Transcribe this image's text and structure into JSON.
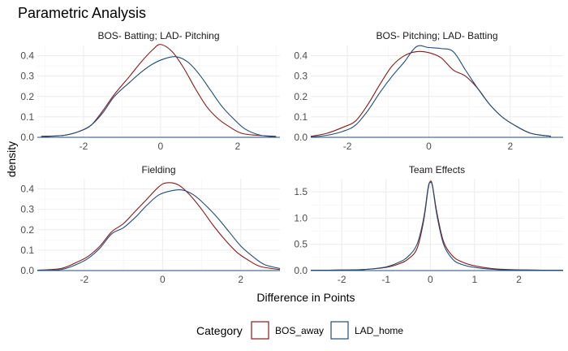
{
  "chart_data": {
    "type": "line",
    "title": "Parametric Analysis",
    "xlabel": "Difference in Points",
    "ylabel": "density",
    "legend": {
      "title": "Category",
      "position": "bottom",
      "entries": [
        {
          "name": "BOS_away",
          "color": "#8b1a1a"
        },
        {
          "name": "LAD_home",
          "color": "#1f4e79"
        }
      ]
    },
    "grid": true,
    "panels": [
      {
        "name": "BOS- Batting; LAD- Pitching",
        "xlim": [
          -3.2,
          3.1
        ],
        "ylim": [
          0,
          0.45
        ],
        "xticks": [
          -2,
          0,
          2
        ],
        "yticks": [
          0.0,
          0.1,
          0.2,
          0.3,
          0.4
        ],
        "series": [
          {
            "name": "BOS_away",
            "color": "#8b1a1a",
            "points": [
              [
                -3.1,
                0.005
              ],
              [
                -2.5,
                0.01
              ],
              [
                -2.1,
                0.03
              ],
              [
                -1.8,
                0.06
              ],
              [
                -1.5,
                0.13
              ],
              [
                -1.2,
                0.21
              ],
              [
                -0.8,
                0.3
              ],
              [
                -0.5,
                0.37
              ],
              [
                -0.2,
                0.43
              ],
              [
                0.0,
                0.455
              ],
              [
                0.3,
                0.42
              ],
              [
                0.6,
                0.34
              ],
              [
                0.9,
                0.24
              ],
              [
                1.2,
                0.15
              ],
              [
                1.5,
                0.09
              ],
              [
                1.8,
                0.05
              ],
              [
                2.1,
                0.02
              ],
              [
                2.5,
                0.01
              ],
              [
                3.0,
                0.005
              ]
            ]
          },
          {
            "name": "LAD_home",
            "color": "#1f4e79",
            "points": [
              [
                -3.1,
                0.003
              ],
              [
                -2.5,
                0.01
              ],
              [
                -2.1,
                0.03
              ],
              [
                -1.8,
                0.06
              ],
              [
                -1.5,
                0.12
              ],
              [
                -1.2,
                0.2
              ],
              [
                -0.8,
                0.27
              ],
              [
                -0.5,
                0.32
              ],
              [
                -0.2,
                0.36
              ],
              [
                0.1,
                0.385
              ],
              [
                0.4,
                0.395
              ],
              [
                0.7,
                0.37
              ],
              [
                1.0,
                0.31
              ],
              [
                1.3,
                0.23
              ],
              [
                1.6,
                0.15
              ],
              [
                1.9,
                0.09
              ],
              [
                2.2,
                0.04
              ],
              [
                2.6,
                0.01
              ],
              [
                3.0,
                0.003
              ]
            ]
          }
        ]
      },
      {
        "name": "BOS- Pitching; LAD- Batting",
        "xlim": [
          -2.9,
          3.3
        ],
        "ylim": [
          0,
          0.45
        ],
        "xticks": [
          -2,
          0,
          2
        ],
        "yticks": [
          0.0,
          0.1,
          0.2,
          0.3,
          0.4
        ],
        "series": [
          {
            "name": "BOS_away",
            "color": "#8b1a1a",
            "points": [
              [
                -2.9,
                0.005
              ],
              [
                -2.5,
                0.02
              ],
              [
                -2.1,
                0.05
              ],
              [
                -1.8,
                0.08
              ],
              [
                -1.5,
                0.16
              ],
              [
                -1.2,
                0.26
              ],
              [
                -0.9,
                0.35
              ],
              [
                -0.6,
                0.4
              ],
              [
                -0.3,
                0.42
              ],
              [
                0.0,
                0.415
              ],
              [
                0.3,
                0.39
              ],
              [
                0.6,
                0.33
              ],
              [
                0.9,
                0.3
              ],
              [
                1.2,
                0.24
              ],
              [
                1.5,
                0.16
              ],
              [
                1.8,
                0.1
              ],
              [
                2.1,
                0.06
              ],
              [
                2.5,
                0.02
              ],
              [
                3.0,
                0.005
              ]
            ]
          },
          {
            "name": "LAD_home",
            "color": "#1f4e79",
            "points": [
              [
                -2.9,
                0.002
              ],
              [
                -2.5,
                0.01
              ],
              [
                -2.1,
                0.03
              ],
              [
                -1.8,
                0.06
              ],
              [
                -1.5,
                0.13
              ],
              [
                -1.2,
                0.22
              ],
              [
                -0.9,
                0.3
              ],
              [
                -0.6,
                0.37
              ],
              [
                -0.3,
                0.445
              ],
              [
                0.0,
                0.44
              ],
              [
                0.3,
                0.435
              ],
              [
                0.6,
                0.42
              ],
              [
                0.9,
                0.33
              ],
              [
                1.2,
                0.24
              ],
              [
                1.5,
                0.16
              ],
              [
                1.8,
                0.1
              ],
              [
                2.1,
                0.06
              ],
              [
                2.5,
                0.02
              ],
              [
                3.0,
                0.005
              ]
            ]
          }
        ]
      },
      {
        "name": "Fielding",
        "xlim": [
          -3.2,
          3.0
        ],
        "ylim": [
          0,
          0.45
        ],
        "xticks": [
          -2,
          0,
          2
        ],
        "yticks": [
          0.0,
          0.1,
          0.2,
          0.3,
          0.4
        ],
        "series": [
          {
            "name": "BOS_away",
            "color": "#8b1a1a",
            "points": [
              [
                -3.2,
                0.002
              ],
              [
                -2.6,
                0.01
              ],
              [
                -2.2,
                0.04
              ],
              [
                -1.9,
                0.07
              ],
              [
                -1.6,
                0.12
              ],
              [
                -1.3,
                0.19
              ],
              [
                -1.0,
                0.23
              ],
              [
                -0.7,
                0.29
              ],
              [
                -0.4,
                0.35
              ],
              [
                -0.1,
                0.41
              ],
              [
                0.1,
                0.43
              ],
              [
                0.4,
                0.42
              ],
              [
                0.7,
                0.37
              ],
              [
                1.0,
                0.3
              ],
              [
                1.3,
                0.22
              ],
              [
                1.6,
                0.15
              ],
              [
                1.9,
                0.09
              ],
              [
                2.2,
                0.05
              ],
              [
                2.5,
                0.02
              ],
              [
                3.0,
                0.005
              ]
            ]
          },
          {
            "name": "LAD_home",
            "color": "#1f4e79",
            "points": [
              [
                -3.2,
                0.002
              ],
              [
                -2.6,
                0.005
              ],
              [
                -2.2,
                0.03
              ],
              [
                -1.9,
                0.06
              ],
              [
                -1.6,
                0.11
              ],
              [
                -1.3,
                0.18
              ],
              [
                -1.0,
                0.21
              ],
              [
                -0.7,
                0.26
              ],
              [
                -0.4,
                0.32
              ],
              [
                -0.1,
                0.37
              ],
              [
                0.2,
                0.39
              ],
              [
                0.5,
                0.395
              ],
              [
                0.8,
                0.37
              ],
              [
                1.1,
                0.32
              ],
              [
                1.4,
                0.26
              ],
              [
                1.7,
                0.19
              ],
              [
                2.0,
                0.12
              ],
              [
                2.3,
                0.07
              ],
              [
                2.6,
                0.03
              ],
              [
                3.0,
                0.01
              ]
            ]
          }
        ]
      },
      {
        "name": "Team Effects",
        "xlim": [
          -2.7,
          3.0
        ],
        "ylim": [
          0,
          1.75
        ],
        "xticks": [
          -2,
          -1,
          0,
          1,
          2
        ],
        "yticks": [
          0.0,
          0.5,
          1.0,
          1.5
        ],
        "series": [
          {
            "name": "BOS_away",
            "color": "#8b1a1a",
            "points": [
              [
                -2.7,
                0.005
              ],
              [
                -2.0,
                0.01
              ],
              [
                -1.5,
                0.02
              ],
              [
                -1.0,
                0.06
              ],
              [
                -0.7,
                0.13
              ],
              [
                -0.5,
                0.22
              ],
              [
                -0.3,
                0.42
              ],
              [
                -0.15,
                0.95
              ],
              [
                -0.05,
                1.55
              ],
              [
                0.0,
                1.7
              ],
              [
                0.05,
                1.62
              ],
              [
                0.15,
                1.1
              ],
              [
                0.3,
                0.55
              ],
              [
                0.5,
                0.28
              ],
              [
                0.7,
                0.17
              ],
              [
                1.0,
                0.09
              ],
              [
                1.5,
                0.03
              ],
              [
                2.2,
                0.01
              ],
              [
                3.0,
                0.005
              ]
            ]
          },
          {
            "name": "LAD_home",
            "color": "#1f4e79",
            "points": [
              [
                -2.7,
                0.005
              ],
              [
                -2.0,
                0.01
              ],
              [
                -1.5,
                0.02
              ],
              [
                -1.0,
                0.07
              ],
              [
                -0.7,
                0.16
              ],
              [
                -0.5,
                0.27
              ],
              [
                -0.3,
                0.5
              ],
              [
                -0.15,
                1.0
              ],
              [
                -0.05,
                1.58
              ],
              [
                0.0,
                1.68
              ],
              [
                0.05,
                1.6
              ],
              [
                0.15,
                1.05
              ],
              [
                0.3,
                0.5
              ],
              [
                0.5,
                0.22
              ],
              [
                0.7,
                0.12
              ],
              [
                1.0,
                0.06
              ],
              [
                1.5,
                0.02
              ],
              [
                2.2,
                0.01
              ],
              [
                3.0,
                0.005
              ]
            ]
          }
        ]
      }
    ]
  }
}
